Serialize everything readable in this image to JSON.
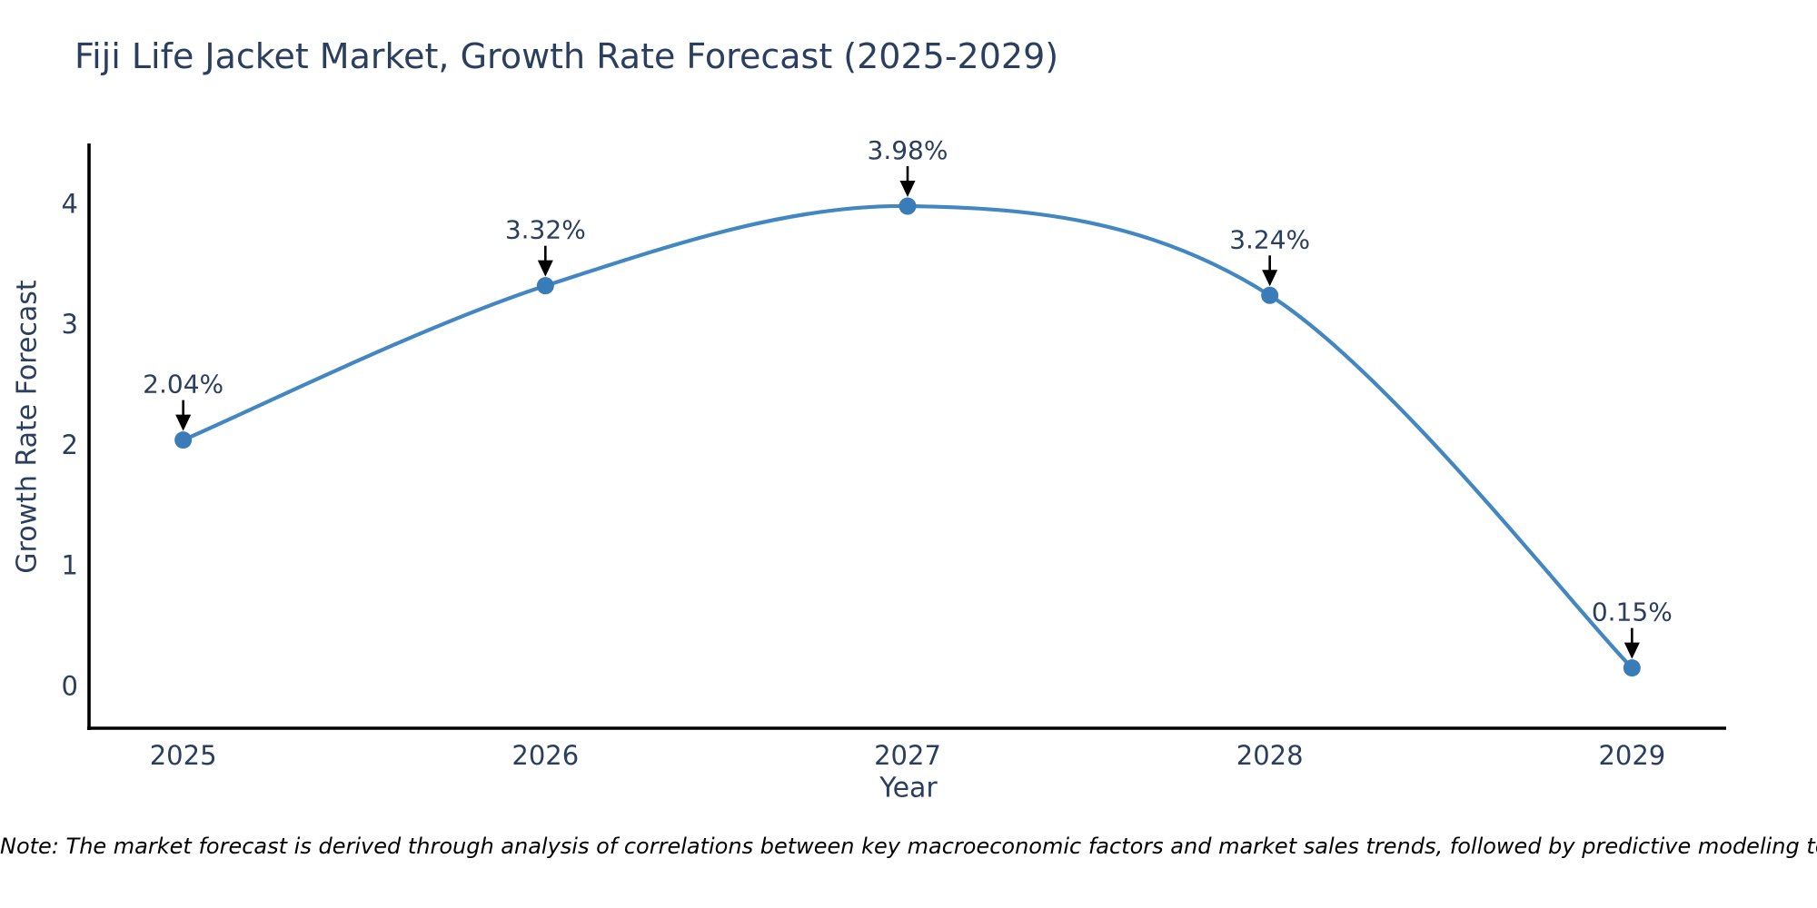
{
  "note": "Note: The market forecast is derived through analysis of correlations between key macroeconomic factors and market sales trends, followed by predictive modeling to project future sales.",
  "chart_data": {
    "type": "line",
    "title": "Fiji Life Jacket Market, Growth Rate Forecast (2025-2029)",
    "xlabel": "Year",
    "ylabel": "Growth Rate Forecast",
    "x": [
      2025,
      2026,
      2027,
      2028,
      2029
    ],
    "y": [
      2.04,
      3.32,
      3.98,
      3.24,
      0.15
    ],
    "point_labels": [
      "2.04%",
      "3.32%",
      "3.98%",
      "3.24%",
      "0.15%"
    ],
    "xticks": [
      "2025",
      "2026",
      "2027",
      "2028",
      "2029"
    ],
    "yticks": [
      0,
      1,
      2,
      3,
      4
    ],
    "xlim": [
      2024.74,
      2029.26
    ],
    "ylim": [
      -0.35,
      4.5
    ],
    "line_shape": "spline",
    "grid": false,
    "legend": false,
    "annotations_style": "value-label-with-down-arrow",
    "colors": {
      "line": "#4387c2",
      "marker": "#3a7cb8",
      "axis": "#000000",
      "tick_text": "#2a3f5f",
      "title_text": "#2a3f5f",
      "annotation_text": "#2a3f5f",
      "annotation_arrow": "#000000",
      "note_text": "#000000",
      "background": "#ffffff"
    }
  }
}
